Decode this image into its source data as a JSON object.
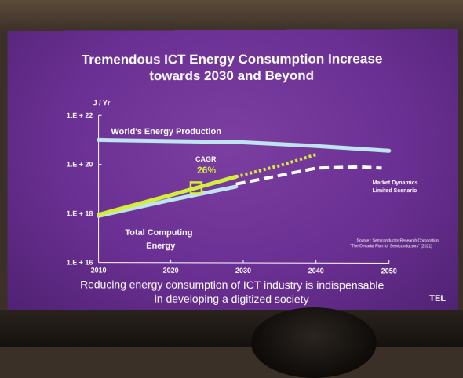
{
  "slide": {
    "title_line1": "Tremendous ICT Energy Consumption Increase",
    "title_line2": "towards 2030 and Beyond",
    "subtitle_line1": "Reducing energy consumption of ICT industry is indispensable",
    "subtitle_line2": "in developing a digitized society",
    "brand": "TEL",
    "source_line1": "Source : Semiconductor Research Corporation,",
    "source_line2": "\"The Decadal Plan for Semiconductors\" (2021)"
  },
  "chart_data": {
    "type": "line",
    "ylabel": "J / Yr",
    "yscale": "log",
    "ylim": [
      16,
      22
    ],
    "xlim": [
      2010,
      2050
    ],
    "y_ticks": [
      {
        "value": 22,
        "label": "1.E + 22"
      },
      {
        "value": 20,
        "label": "1.E + 20"
      },
      {
        "value": 18,
        "label": "1.E + 18"
      },
      {
        "value": 16,
        "label": "1.E + 16"
      }
    ],
    "x_ticks": [
      {
        "value": 2010,
        "label": "2010"
      },
      {
        "value": 2020,
        "label": "2020"
      },
      {
        "value": 2030,
        "label": "2030"
      },
      {
        "value": 2040,
        "label": "2040"
      },
      {
        "value": 2050,
        "label": "2050"
      }
    ],
    "series": [
      {
        "name": "World's Energy Production",
        "color": "#bfe3ef",
        "style": "solid",
        "x": [
          2010,
          2020,
          2030,
          2040,
          2050
        ],
        "y": [
          21.0,
          20.95,
          20.9,
          20.75,
          20.55
        ]
      },
      {
        "name": "Total Computing Energy",
        "color": "#bfe3ef",
        "style": "solid",
        "x": [
          2010,
          2020,
          2029
        ],
        "y": [
          17.9,
          18.55,
          19.1
        ]
      },
      {
        "name": "",
        "color": "#d4ef3a",
        "style": "solid",
        "x": [
          2010,
          2020,
          2029
        ],
        "y": [
          17.95,
          18.75,
          19.5
        ]
      },
      {
        "name": "",
        "color": "#d4ef3a",
        "style": "dotted",
        "x": [
          2029,
          2035,
          2040
        ],
        "y": [
          19.5,
          19.95,
          20.4
        ]
      },
      {
        "name": "Market Dynamics Limited Scenario",
        "color": "#ffffff",
        "style": "dashed",
        "x": [
          2029,
          2035,
          2040,
          2046,
          2049
        ],
        "y": [
          19.2,
          19.55,
          19.85,
          19.9,
          19.85
        ]
      }
    ],
    "annotations": [
      {
        "label": "CAGR",
        "value": "26%",
        "x": 2023.5,
        "y": 19.05,
        "color": "#d4ef3a"
      }
    ],
    "scenario_label_line1": "Market Dynamics",
    "scenario_label_line2": "Limited Scenario",
    "label_world_energy": "World's Energy Production",
    "label_computing_line1": "Total Computing",
    "label_computing_line2": "Energy"
  }
}
